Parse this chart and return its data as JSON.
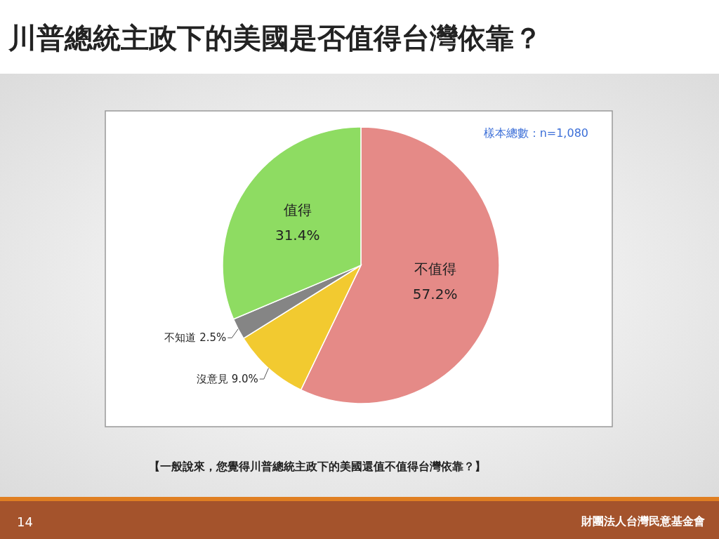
{
  "chart_data": {
    "type": "pie",
    "title": "川普總統主政下的美國是否值得台灣依靠？",
    "categories": [
      "不值得",
      "沒意見",
      "不知道",
      "值得"
    ],
    "values": [
      57.2,
      9.0,
      2.5,
      31.4
    ],
    "value_labels": [
      "57.2%",
      "9.0%",
      "2.5%",
      "31.4%"
    ],
    "colors": [
      "#e58a87",
      "#f2ca30",
      "#858585",
      "#8edc62"
    ],
    "annotations": [
      "樣本總數：n=1,080",
      "【一般說來，您覺得川普總統主政下的美國還值不值得台灣依靠？】",
      "14",
      "財團法人台灣民意基金會"
    ]
  }
}
